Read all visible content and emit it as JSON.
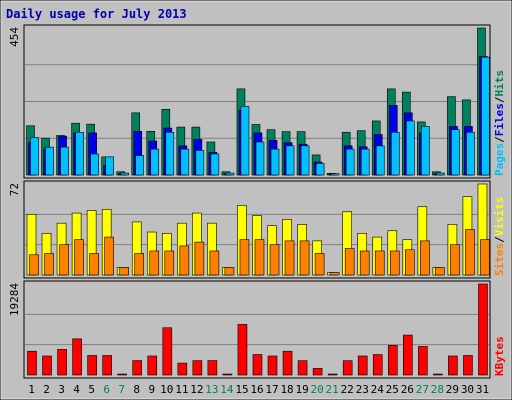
{
  "title": "Daily usage for July 2013",
  "colors": {
    "hits": "#00805c",
    "files": "#0000e6",
    "pages": "#00c0ff",
    "visits": "#ffff00",
    "sites": "#ff8000",
    "kbytes": "#ff0000",
    "weekend": "#00805c",
    "weekday": "#000000",
    "slash": "#000000"
  },
  "legend": {
    "top": [
      "Pages",
      "Files",
      "Hits"
    ],
    "middle": [
      "Sites",
      "Visits"
    ],
    "bottom": [
      "KBytes"
    ],
    "sep": "/"
  },
  "chart_data": {
    "type": "bar",
    "categories": [
      "1",
      "2",
      "3",
      "4",
      "5",
      "6",
      "7",
      "8",
      "9",
      "10",
      "11",
      "12",
      "13",
      "14",
      "15",
      "16",
      "17",
      "18",
      "19",
      "20",
      "21",
      "22",
      "23",
      "24",
      "25",
      "26",
      "27",
      "28",
      "29",
      "30",
      "31"
    ],
    "weekend_days": [
      "6",
      "7",
      "13",
      "14",
      "20",
      "21",
      "27",
      "28"
    ],
    "panels": [
      {
        "id": "top",
        "ymax_label": "454",
        "ylim": [
          0,
          454
        ],
        "series": [
          {
            "name": "Hits",
            "values": [
              152,
              114,
              122,
              160,
              157,
              56,
              10,
              192,
              135,
              203,
              148,
              148,
              102,
              10,
              266,
              156,
              140,
              134,
              134,
              62,
              5,
              132,
              137,
              167,
              266,
              256,
              164,
              10,
              242,
              232,
              454
            ]
          },
          {
            "name": "Files",
            "values": [
              100,
              80,
              120,
              130,
              130,
              30,
              5,
              135,
              105,
              145,
              90,
              110,
              70,
              4,
              200,
              130,
              107,
              100,
              95,
              40,
              3,
              90,
              87,
              125,
              215,
              192,
              130,
              5,
              150,
              150,
              366
            ]
          },
          {
            "name": "Pages",
            "values": [
              116,
              86,
              86,
              132,
              65,
              56,
              6,
              60,
              80,
              132,
              80,
              76,
              65,
              6,
              212,
              102,
              80,
              90,
              90,
              36,
              4,
              80,
              80,
              90,
              132,
              167,
              150,
              6,
              140,
              132,
              364
            ]
          }
        ]
      },
      {
        "id": "middle",
        "ymax_label": "72",
        "ylim": [
          0,
          72
        ],
        "series": [
          {
            "name": "Visits",
            "values": [
              48,
              33,
              41,
              49,
              51,
              52,
              6,
              42,
              34,
              33,
              41,
              49,
              41,
              6,
              55,
              47,
              39,
              44,
              40,
              27,
              2,
              50,
              33,
              30,
              35,
              28,
              54,
              6,
              40,
              62,
              72
            ]
          },
          {
            "name": "Sites",
            "values": [
              16,
              17,
              24,
              28,
              17,
              30,
              6,
              17,
              19,
              19,
              23,
              26,
              19,
              6,
              28,
              28,
              24,
              27,
              27,
              17,
              2,
              21,
              19,
              19,
              19,
              20,
              27,
              6,
              24,
              36,
              28
            ]
          }
        ]
      },
      {
        "id": "bottom",
        "ymax_label": "19284",
        "ylim": [
          0,
          19284
        ],
        "series": [
          {
            "name": "KBytes",
            "values": [
              5040,
              4030,
              5440,
              7660,
              4130,
              4130,
              210,
              3060,
              4030,
              10010,
              2520,
              3050,
              3060,
              210,
              10730,
              4340,
              4030,
              5040,
              3030,
              1400,
              210,
              3030,
              4030,
              4330,
              6280,
              8460,
              6050,
              210,
              4030,
              4130,
              19284
            ]
          }
        ]
      }
    ]
  }
}
